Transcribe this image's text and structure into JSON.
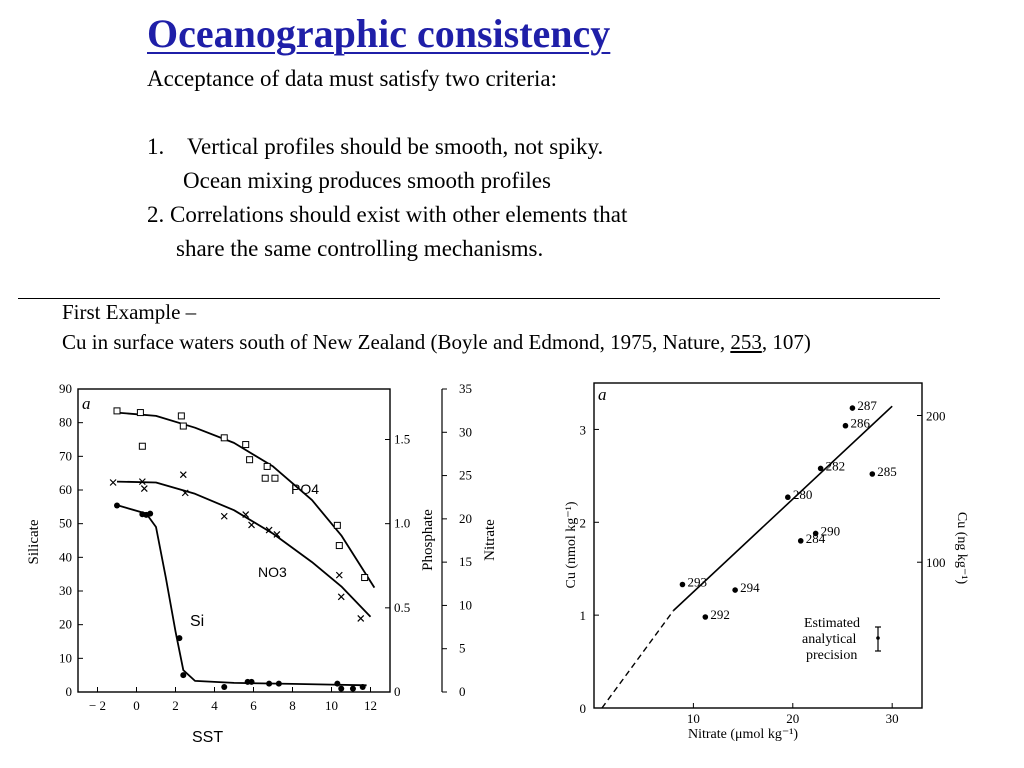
{
  "slide": {
    "title": "Oceanographic consistency",
    "subtitle": "Acceptance of data must satisfy two criteria:",
    "criteria_1_num": "1.",
    "criteria_1_line1": "Vertical profiles should be smooth, not spiky.",
    "criteria_1_line2": "Ocean mixing produces smooth profiles",
    "criteria_2_line1": "2. Correlations should exist with other elements that",
    "criteria_2_line2": "share the same controlling mechanisms.",
    "example_heading": "First Example –",
    "example_ref_pre": "Cu in surface waters south of New Zealand  (Boyle and Edmond, 1975, Nature, ",
    "example_ref_volume": "253",
    "example_ref_post": ", 107)"
  },
  "chart_data": [
    {
      "type": "scatter",
      "panel_label": "a",
      "xlabel": "SST",
      "xlim": [
        -3,
        13
      ],
      "x_ticks": [
        -2,
        0,
        2,
        4,
        6,
        8,
        10,
        12
      ],
      "x_tick_labels": [
        "− 2",
        "0",
        "2",
        "4",
        "6",
        "8",
        "10",
        "12"
      ],
      "y_left": {
        "label": "Silicate",
        "lim": [
          0,
          90
        ],
        "ticks": [
          0,
          10,
          20,
          30,
          40,
          50,
          60,
          70,
          80,
          90
        ]
      },
      "y_phosphate": {
        "label": "Phosphate",
        "lim": [
          0,
          1.8
        ],
        "ticks": [
          0,
          0.5,
          1.0,
          1.5
        ],
        "tick_labels": [
          "0",
          "0.5",
          "1.0",
          "1.5"
        ]
      },
      "y_nitrate": {
        "label": "Nitrate",
        "lim": [
          0,
          35
        ],
        "ticks": [
          0,
          5,
          10,
          15,
          20,
          25,
          30,
          35
        ]
      },
      "series": [
        {
          "name": "PO4",
          "axis": "y_phosphate",
          "marker": "square",
          "points": [
            [
              -1,
              1.67
            ],
            [
              0.2,
              1.66
            ],
            [
              0.3,
              1.46
            ],
            [
              2.3,
              1.64
            ],
            [
              2.4,
              1.58
            ],
            [
              4.5,
              1.51
            ],
            [
              5.6,
              1.47
            ],
            [
              5.8,
              1.38
            ],
            [
              6.7,
              1.34
            ],
            [
              6.6,
              1.27
            ],
            [
              7.1,
              1.27
            ],
            [
              10.3,
              0.99
            ],
            [
              10.4,
              0.87
            ],
            [
              11.7,
              0.68
            ]
          ],
          "curve": [
            [
              -1,
              1.66
            ],
            [
              1,
              1.64
            ],
            [
              3,
              1.57
            ],
            [
              5,
              1.48
            ],
            [
              7,
              1.34
            ],
            [
              9,
              1.14
            ],
            [
              10.5,
              0.93
            ],
            [
              12.2,
              0.62
            ]
          ]
        },
        {
          "name": "NO3",
          "axis": "y_nitrate",
          "marker": "x",
          "points": [
            [
              -1.2,
              24.2
            ],
            [
              0.3,
              24.3
            ],
            [
              0.4,
              23.5
            ],
            [
              2.4,
              25.1
            ],
            [
              2.5,
              23.0
            ],
            [
              4.5,
              20.3
            ],
            [
              5.6,
              20.5
            ],
            [
              5.9,
              19.3
            ],
            [
              6.8,
              18.7
            ],
            [
              7.2,
              18.2
            ],
            [
              10.4,
              13.5
            ],
            [
              10.5,
              11.0
            ],
            [
              11.5,
              8.5
            ]
          ],
          "curve": [
            [
              -1,
              24.3
            ],
            [
              1,
              24.2
            ],
            [
              3,
              22.9
            ],
            [
              5,
              21.0
            ],
            [
              7,
              18.3
            ],
            [
              9,
              15.0
            ],
            [
              10.5,
              12.2
            ],
            [
              12,
              8.7
            ]
          ]
        },
        {
          "name": "Si",
          "axis": "y_left",
          "marker": "dot",
          "points": [
            [
              -1,
              55.4
            ],
            [
              0.3,
              52.8
            ],
            [
              0.5,
              52.6
            ],
            [
              0.7,
              53.0
            ],
            [
              2.2,
              16.0
            ],
            [
              2.4,
              5.0
            ],
            [
              4.5,
              1.5
            ],
            [
              5.7,
              3.0
            ],
            [
              5.9,
              3.0
            ],
            [
              6.8,
              2.5
            ],
            [
              7.3,
              2.5
            ],
            [
              10.3,
              2.5
            ],
            [
              10.5,
              1.0
            ],
            [
              11.1,
              1.0
            ],
            [
              11.6,
              1.5
            ]
          ],
          "curve": [
            [
              -1,
              55.5
            ],
            [
              0.5,
              53
            ],
            [
              1,
              49
            ],
            [
              1.5,
              34
            ],
            [
              2,
              18
            ],
            [
              2.4,
              6.5
            ],
            [
              3,
              3.3
            ],
            [
              5,
              2.7
            ],
            [
              8,
              2.4
            ],
            [
              10,
              2.2
            ],
            [
              11.8,
              2.0
            ]
          ]
        }
      ],
      "series_labels": [
        "PO4",
        "NO3",
        "Si"
      ]
    },
    {
      "type": "scatter",
      "panel_label": "a",
      "xlabel": "Nitrate (μmol kg⁻¹)",
      "ylabel": "Cu (nmol kg⁻¹)",
      "ylabel_right": "Cu (ng kg⁻¹)",
      "xlim": [
        0,
        33
      ],
      "ylim": [
        0,
        3.5
      ],
      "x_ticks": [
        10,
        20,
        30
      ],
      "y_ticks": [
        0,
        1,
        2,
        3
      ],
      "right_ticks": [
        {
          "value": 100,
          "at_nmol": 1.57
        },
        {
          "value": 200,
          "at_nmol": 3.15
        }
      ],
      "points": [
        {
          "label": "287",
          "x": 26.0,
          "y": 3.23
        },
        {
          "label": "286",
          "x": 25.3,
          "y": 3.04
        },
        {
          "label": "282",
          "x": 22.8,
          "y": 2.58
        },
        {
          "label": "285",
          "x": 28.0,
          "y": 2.52
        },
        {
          "label": "280",
          "x": 19.5,
          "y": 2.27
        },
        {
          "label": "290",
          "x": 22.3,
          "y": 1.88
        },
        {
          "label": "284",
          "x": 20.8,
          "y": 1.8
        },
        {
          "label": "293",
          "x": 8.9,
          "y": 1.33
        },
        {
          "label": "294",
          "x": 14.2,
          "y": 1.27
        },
        {
          "label": "292",
          "x": 11.2,
          "y": 0.98
        }
      ],
      "fit_line": {
        "solid": [
          [
            8,
            1.05
          ],
          [
            30,
            3.25
          ]
        ],
        "dashed": [
          [
            0.8,
            0
          ],
          [
            8,
            1.05
          ]
        ]
      },
      "annotation": [
        "Estimated",
        "analytical",
        "precision"
      ]
    }
  ]
}
